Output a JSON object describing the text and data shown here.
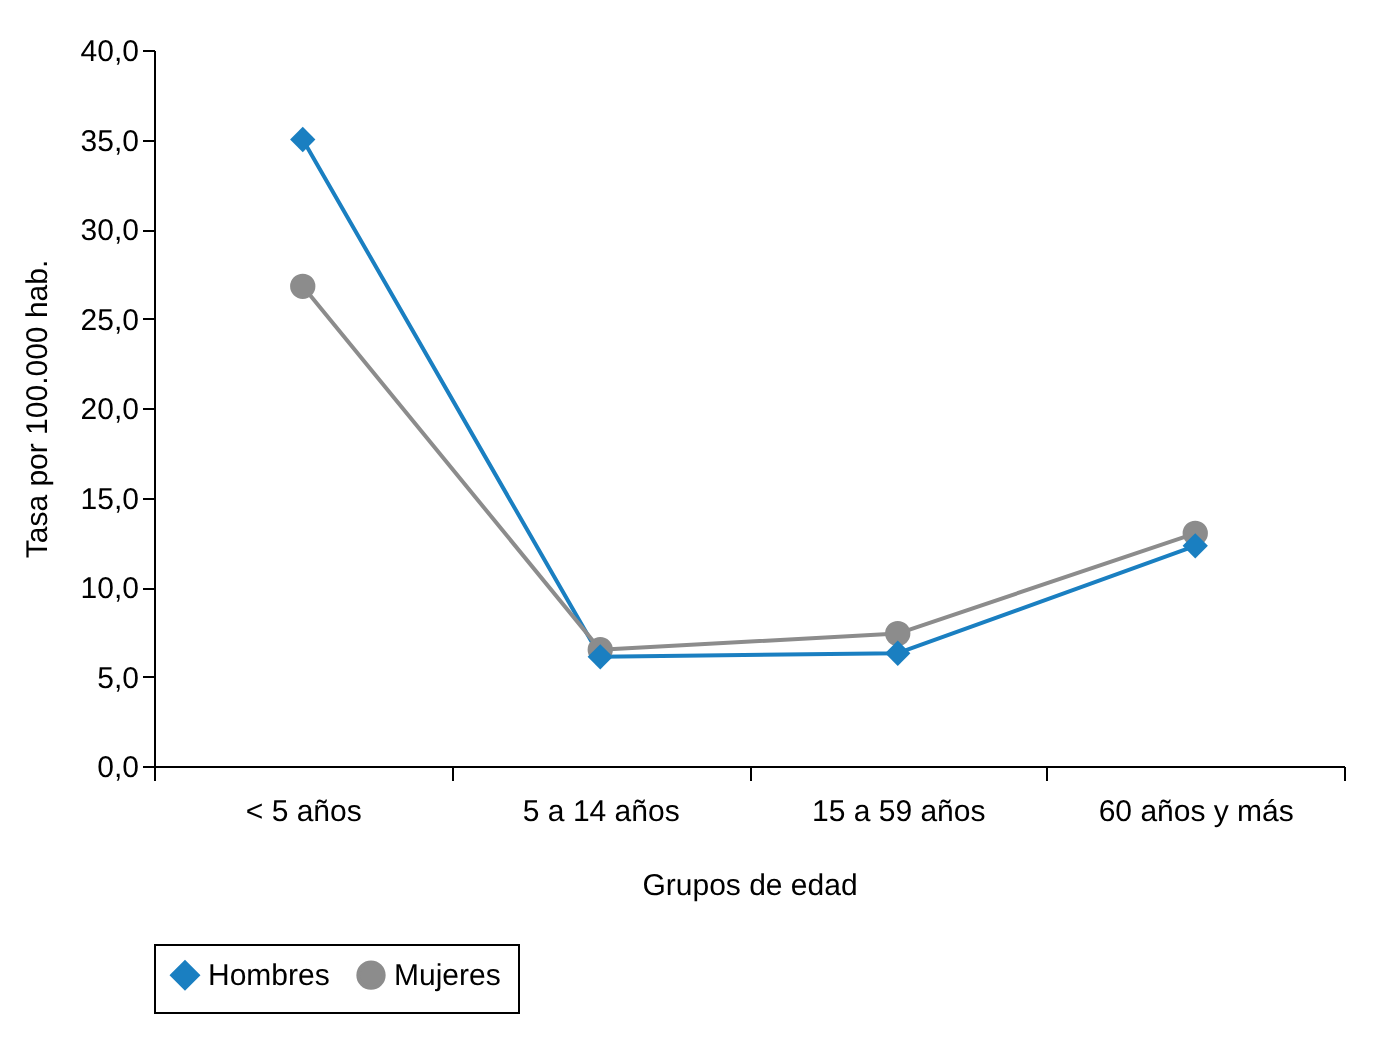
{
  "chart_data": {
    "type": "line",
    "xlabel": "Grupos de edad",
    "ylabel": "Tasa por 100.000 hab.",
    "categories": [
      "< 5 años",
      "5 a 14 años",
      "15 a 59 años",
      "60 años y más"
    ],
    "series": [
      {
        "name": "Hombres",
        "color": "#1a7fc1",
        "marker": "diamond",
        "values": [
          35.0,
          6.1,
          6.3,
          12.3
        ]
      },
      {
        "name": "Mujeres",
        "color": "#8c8c8c",
        "marker": "circle",
        "values": [
          26.8,
          6.5,
          7.4,
          13.0
        ]
      }
    ],
    "ylim": [
      0,
      40
    ],
    "yticks": [
      {
        "value": 0,
        "label": "0,0"
      },
      {
        "value": 5,
        "label": "5,0"
      },
      {
        "value": 10,
        "label": "10,0"
      },
      {
        "value": 15,
        "label": "15,0"
      },
      {
        "value": 20,
        "label": "20,0"
      },
      {
        "value": 25,
        "label": "25,0"
      },
      {
        "value": 30,
        "label": "30,0"
      },
      {
        "value": 35,
        "label": "35,0"
      },
      {
        "value": 40,
        "label": "40,0"
      }
    ],
    "grid": false,
    "legend": "bottom",
    "line_style": "solid"
  }
}
